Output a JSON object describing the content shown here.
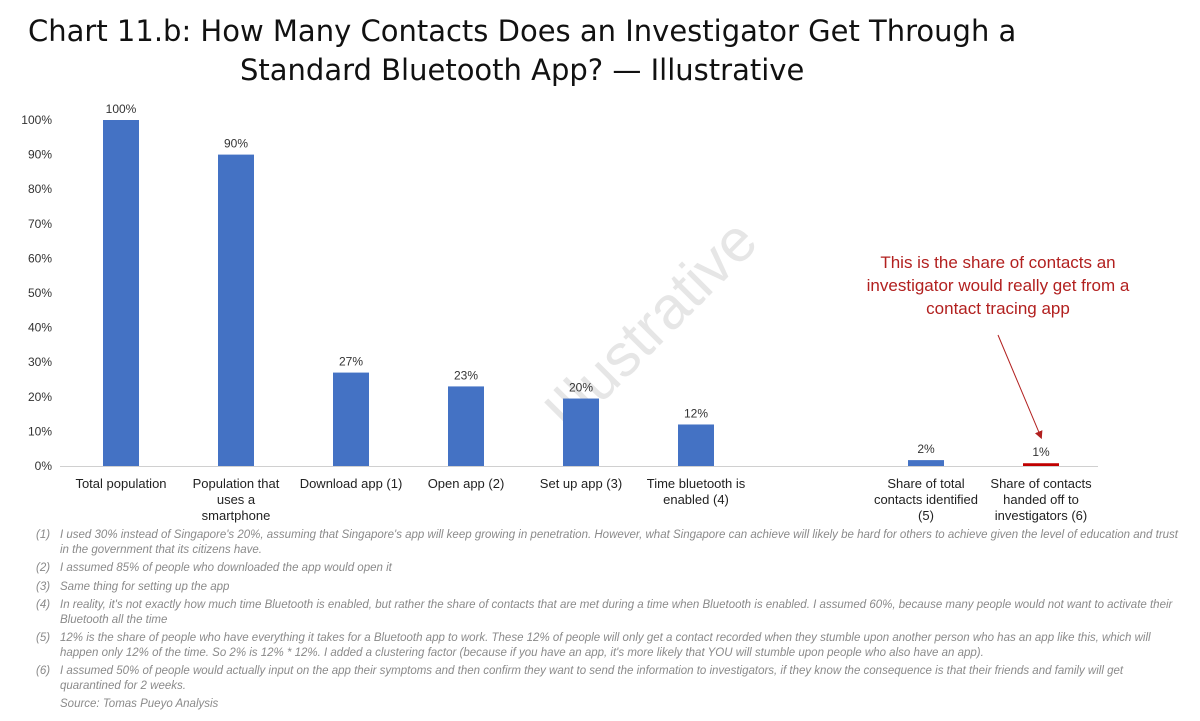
{
  "title": {
    "line1": "Chart 11.b: How Many Contacts Does an Investigator Get Through a",
    "line2": "Standard Bluetooth App? — Illustrative"
  },
  "chart_data": {
    "type": "bar",
    "categories": [
      [
        "Total population"
      ],
      [
        "Population that",
        "uses a",
        "smartphone"
      ],
      [
        "Download app (1)"
      ],
      [
        "Open app (2)"
      ],
      [
        "Set up app (3)"
      ],
      [
        "Time bluetooth is",
        "enabled (4)"
      ],
      [
        "Share of total",
        "contacts identified",
        "(5)"
      ],
      [
        "Share of contacts",
        "handed off to",
        "investigators (6)"
      ]
    ],
    "category_slots": [
      0,
      1,
      2,
      3,
      4,
      5,
      7,
      8
    ],
    "values": [
      100,
      90,
      27,
      23,
      20,
      12,
      2,
      1
    ],
    "value_labels": [
      "100%",
      "90%",
      "27%",
      "23%",
      "20%",
      "12%",
      "2%",
      "1%"
    ],
    "colors": [
      "#4472c4",
      "#4472c4",
      "#4472c4",
      "#4472c4",
      "#4472c4",
      "#4472c4",
      "#4472c4",
      "#c00000"
    ],
    "actual_values": [
      100,
      90,
      27,
      23,
      19.5,
      12,
      1.7,
      0.8
    ],
    "ylim": [
      0,
      100
    ],
    "yticks": [
      0,
      10,
      20,
      30,
      40,
      50,
      60,
      70,
      80,
      90,
      100
    ],
    "ytick_labels": [
      "0%",
      "10%",
      "20%",
      "30%",
      "40%",
      "50%",
      "60%",
      "70%",
      "80%",
      "90%",
      "100%"
    ],
    "grid": false,
    "watermark": "Illustrative",
    "annotation": {
      "lines": [
        "This is the share of contacts an",
        "investigator would really get from a",
        "contact tracing app"
      ],
      "color": "#b2201f",
      "points_to_category": 7
    }
  },
  "notes": [
    {
      "num": "(1)",
      "text": "I used 30% instead of Singapore's 20%, assuming that Singapore's app will keep growing in penetration. However, what Singapore can achieve will likely be hard for others to achieve given the level of education and trust in the government that its citizens have."
    },
    {
      "num": "(2)",
      "text": "I assumed 85% of people who downloaded the app would open it"
    },
    {
      "num": "(3)",
      "text": "Same thing for setting up the app"
    },
    {
      "num": "(4)",
      "text": "In reality, it's not exactly how much time Bluetooth is enabled, but rather the share of contacts that are met during a time when Bluetooth is enabled. I assumed 60%, because many people would not want to activate their Bluetooth all the time"
    },
    {
      "num": "(5)",
      "text": "12% is the share of people who have everything it takes for a Bluetooth app to work. These 12% of people will only get a contact recorded when they stumble upon another person who has an app like this, which will happen only 12% of the time. So 2% is 12% * 12%. I added a clustering factor (because if you have an app, it's more likely that YOU will stumble upon people who also have an app)."
    },
    {
      "num": "(6)",
      "text": "I assumed 50% of people would actually input on the app their symptoms and then confirm they want to send the information to investigators, if they know the consequence is that their friends and family will get quarantined for 2 weeks."
    }
  ],
  "source": "Source: Tomas Pueyo Analysis"
}
